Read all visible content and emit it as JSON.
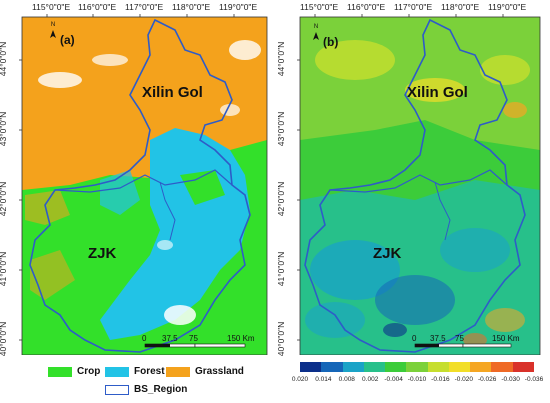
{
  "panel_a": {
    "tag": "(a)",
    "longitudes": [
      "115°0\"0\"E",
      "116°0\"0\"E",
      "117°0\"0\"E",
      "118°0\"0\"E",
      "119°0\"0\"E"
    ],
    "latitudes": [
      "44°0\"0\"N",
      "43°0\"0\"N",
      "42°0\"0\"N",
      "41°0\"0\"N",
      "40°0\"0\"N"
    ],
    "region_north": "Xilin Gol",
    "region_south": "ZJK",
    "scale": [
      "0",
      "37.5",
      "75",
      "150 Km"
    ],
    "north": "N"
  },
  "panel_b": {
    "tag": "(b)",
    "longitudes": [
      "115°0\"0\"E",
      "116°0\"0\"E",
      "117°0\"0\"E",
      "118°0\"0\"E",
      "119°0\"0\"E"
    ],
    "latitudes": [
      "44°0\"0\"N",
      "43°0\"0\"N",
      "42°0\"0\"N",
      "41°0\"0\"N",
      "40°0\"0\"N"
    ],
    "region_north": "Xilin Gol",
    "region_south": "ZJK",
    "scale": [
      "0",
      "37.5",
      "75",
      "150 Km"
    ],
    "north": "N"
  },
  "legend_a": {
    "crop": "Crop",
    "forest": "Forest",
    "grassland": "Grassland",
    "region": "BS_Region",
    "colors": {
      "crop": "#33e02a",
      "forest": "#22c3e6",
      "grassland": "#f4a21c",
      "region": "#2e5cc8"
    }
  },
  "legend_b": {
    "ticks": [
      "0.020",
      "0.014",
      "0.008",
      "0.002",
      "-0.004",
      "-0.010",
      "-0.016",
      "-0.020",
      "-0.026",
      "-0.030",
      "-0.036"
    ],
    "colors": [
      "#0b2f8a",
      "#1566b8",
      "#1aa3c7",
      "#27c08a",
      "#3ccc3a",
      "#7bd13a",
      "#c6de2e",
      "#f2de28",
      "#f5a623",
      "#ef6a26",
      "#d9322a"
    ]
  }
}
